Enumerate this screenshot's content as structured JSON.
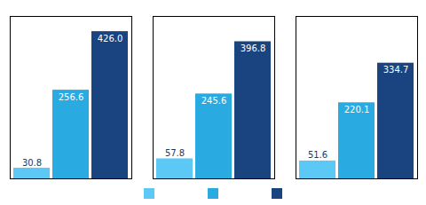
{
  "chart_data": {
    "type": "bar",
    "categories": [
      null,
      null,
      null
    ],
    "series": [
      {
        "color": "#5bc8f5",
        "values": [
          30.8,
          57.8,
          51.6
        ],
        "value_labels": [
          "30.8",
          "57.8",
          "51.6"
        ]
      },
      {
        "color": "#29abe2",
        "values": [
          256.6,
          245.6,
          220.1
        ],
        "value_labels": [
          "256.6",
          "245.6",
          "220.1"
        ]
      },
      {
        "color": "#1a4480",
        "values": [
          426.0,
          396.8,
          334.7
        ],
        "value_labels": [
          "426.0",
          "396.8",
          "334.7"
        ]
      }
    ],
    "ylim": [
      0,
      470
    ],
    "data_labels": true,
    "tick_labels": false,
    "legend": "bottom"
  }
}
